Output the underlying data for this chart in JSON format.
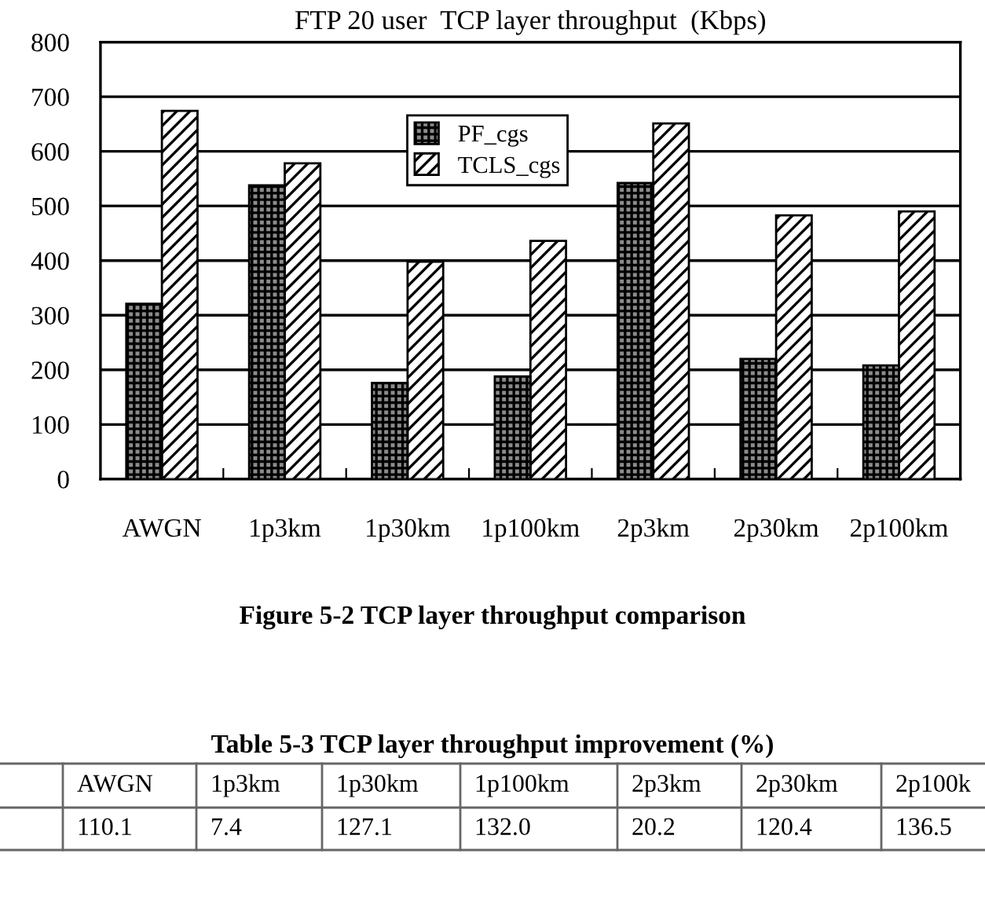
{
  "chart_data": {
    "type": "bar",
    "title": "FTP 20 user  TCP layer throughput  (Kbps)",
    "categories": [
      "AWGN",
      "1p3km",
      "1p30km",
      "1p100km",
      "2p3km",
      "2p30km",
      "2p100km"
    ],
    "series": [
      {
        "name": "PF_cgs",
        "color": "#8c8c8c",
        "values": [
          321,
          538,
          176,
          188,
          542,
          220,
          208
        ]
      },
      {
        "name": "TCLS_cgs",
        "color": "#ffffff",
        "values": [
          674,
          578,
          398,
          436,
          651,
          483,
          490
        ]
      }
    ],
    "ylim": [
      0,
      800
    ],
    "yticks": [
      0,
      100,
      200,
      300,
      400,
      500,
      600,
      700,
      800
    ],
    "grid": "y",
    "legend": "top",
    "annotations": [
      "Figure 5-2 TCP layer throughput comparison",
      "Table 5-3 TCP layer throughput improvement (%)",
      "AWGN",
      "1p3km",
      "1p30km",
      "1p100km",
      "2p3km",
      "2p30km",
      "2p100k",
      "110.1",
      "7.4",
      "127.1",
      "132.0",
      "20.2",
      "120.4",
      "136.5"
    ]
  }
}
